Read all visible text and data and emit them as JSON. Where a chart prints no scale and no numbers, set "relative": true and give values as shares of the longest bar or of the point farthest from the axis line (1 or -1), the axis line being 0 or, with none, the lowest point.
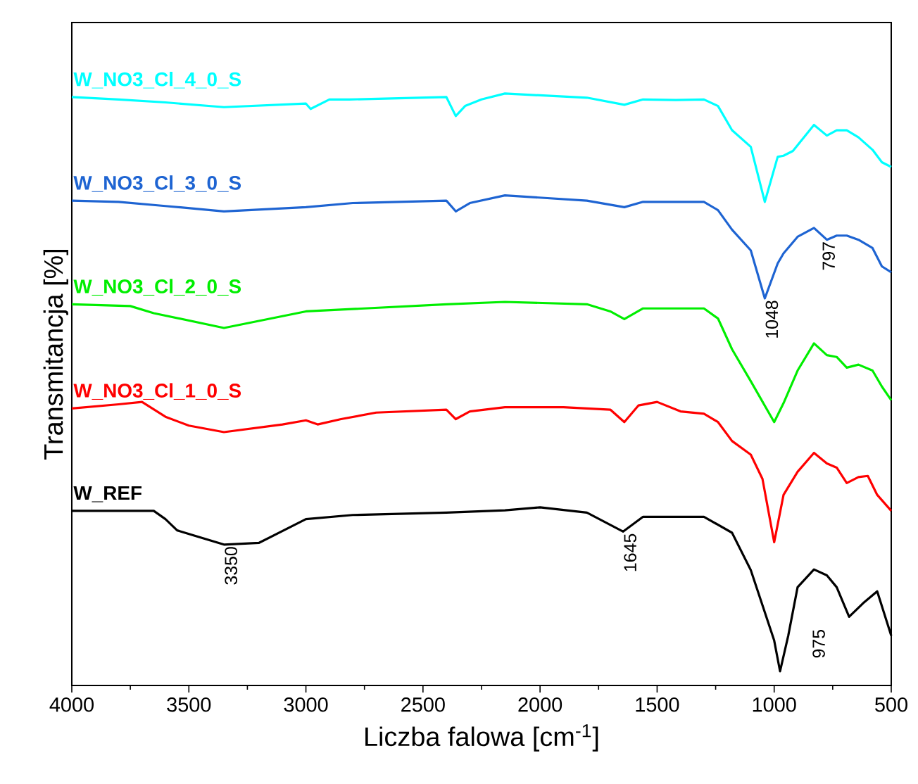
{
  "chart_data": {
    "type": "line",
    "relative": true,
    "xlabel": "Liczba falowa [cm$^{-1}$]",
    "ylabel": "Transmitancja [%]",
    "xlim": [
      4000,
      500
    ],
    "xticks": [
      4000,
      3500,
      3000,
      2500,
      2000,
      1500,
      1000,
      500
    ],
    "series": [
      {
        "name": "W_NO3_Cl_4_0_S",
        "color": "#00ffff",
        "x": [
          4000,
          3800,
          3600,
          3350,
          3000,
          2980,
          2900,
          2815,
          2400,
          2360,
          2320,
          2250,
          2150,
          1800,
          1640,
          1560,
          1420,
          1300,
          1240,
          1180,
          1100,
          1040,
          985,
          960,
          920,
          830,
          775,
          733,
          690,
          640,
          580,
          540,
          500
        ],
        "values": [
          0.994,
          0.99,
          0.985,
          0.977,
          0.983,
          0.974,
          0.99,
          0.99,
          0.994,
          0.962,
          0.979,
          0.99,
          1.0,
          0.993,
          0.981,
          0.99,
          0.989,
          0.99,
          0.979,
          0.938,
          0.91,
          0.817,
          0.893,
          0.895,
          0.903,
          0.947,
          0.929,
          0.938,
          0.938,
          0.926,
          0.905,
          0.884,
          0.876
        ]
      },
      {
        "name": "W_NO3_Cl_3_0_S",
        "color": "#1e64d2",
        "x": [
          4000,
          3800,
          3600,
          3350,
          3000,
          2800,
          2400,
          2360,
          2300,
          2150,
          1800,
          1640,
          1560,
          1300,
          1240,
          1180,
          1100,
          1040,
          985,
          960,
          900,
          830,
          775,
          733,
          690,
          640,
          580,
          540,
          500
        ],
        "values": [
          0.819,
          0.817,
          0.81,
          0.801,
          0.808,
          0.815,
          0.819,
          0.801,
          0.815,
          0.828,
          0.819,
          0.808,
          0.817,
          0.817,
          0.803,
          0.77,
          0.735,
          0.654,
          0.713,
          0.73,
          0.758,
          0.773,
          0.753,
          0.76,
          0.76,
          0.753,
          0.739,
          0.708,
          0.698
        ]
      },
      {
        "name": "W_NO3_Cl_2_0_S",
        "color": "#00ee00",
        "x": [
          4000,
          3750,
          3650,
          3350,
          3000,
          2400,
          2150,
          1800,
          1700,
          1640,
          1560,
          1300,
          1240,
          1180,
          1100,
          1000,
          960,
          900,
          830,
          775,
          733,
          690,
          640,
          580,
          540,
          500
        ],
        "values": [
          0.644,
          0.641,
          0.629,
          0.604,
          0.632,
          0.644,
          0.648,
          0.644,
          0.632,
          0.619,
          0.637,
          0.637,
          0.62,
          0.568,
          0.514,
          0.445,
          0.477,
          0.532,
          0.578,
          0.558,
          0.555,
          0.537,
          0.542,
          0.532,
          0.505,
          0.482
        ]
      },
      {
        "name": "W_NO3_Cl_1_0_S",
        "color": "#ff0000",
        "x": [
          4000,
          3800,
          3700,
          3600,
          3500,
          3350,
          3100,
          3000,
          2950,
          2850,
          2700,
          2400,
          2360,
          2300,
          2150,
          1900,
          1700,
          1640,
          1580,
          1500,
          1400,
          1300,
          1240,
          1180,
          1100,
          1050,
          1000,
          960,
          900,
          830,
          775,
          733,
          690,
          640,
          600,
          560,
          500
        ],
        "values": [
          0.468,
          0.475,
          0.479,
          0.454,
          0.439,
          0.428,
          0.441,
          0.448,
          0.441,
          0.45,
          0.461,
          0.466,
          0.45,
          0.463,
          0.47,
          0.47,
          0.466,
          0.445,
          0.473,
          0.479,
          0.463,
          0.459,
          0.445,
          0.413,
          0.39,
          0.349,
          0.242,
          0.322,
          0.361,
          0.393,
          0.375,
          0.368,
          0.342,
          0.352,
          0.354,
          0.322,
          0.295
        ]
      },
      {
        "name": "W_REF",
        "color": "#000000",
        "x": [
          4000,
          3650,
          3600,
          3550,
          3350,
          3200,
          3000,
          2800,
          2400,
          2150,
          2000,
          1800,
          1645,
          1560,
          1300,
          1180,
          1100,
          1000,
          975,
          940,
          900,
          830,
          775,
          733,
          680,
          620,
          560,
          500
        ],
        "values": [
          0.295,
          0.295,
          0.281,
          0.262,
          0.238,
          0.241,
          0.281,
          0.288,
          0.292,
          0.296,
          0.301,
          0.292,
          0.26,
          0.285,
          0.285,
          0.258,
          0.195,
          0.076,
          0.024,
          0.084,
          0.166,
          0.196,
          0.186,
          0.166,
          0.116,
          0.139,
          0.159,
          0.084
        ]
      }
    ],
    "annotations": [
      {
        "text": "3350",
        "x": 3350,
        "y": 0.238
      },
      {
        "text": "1645",
        "x": 1645,
        "y": 0.26
      },
      {
        "text": "975",
        "x": 975,
        "y": 0.024
      },
      {
        "text": "1048",
        "x": 1040,
        "y": 0.654
      },
      {
        "text": "797",
        "x": 797,
        "y": 0.753
      }
    ]
  }
}
